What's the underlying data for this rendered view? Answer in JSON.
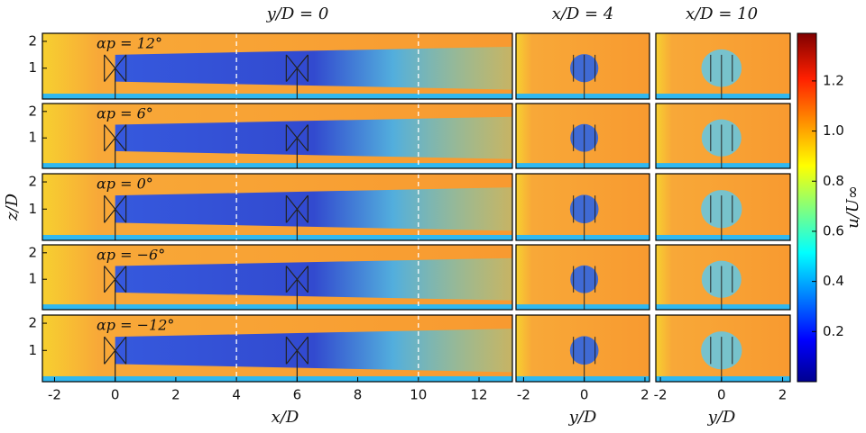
{
  "chart_data": {
    "type": "heatmap",
    "titles": [
      "y/D = 0",
      "x/D = 4",
      "x/D = 10"
    ],
    "xlabels": [
      "x/D",
      "y/D",
      "y/D"
    ],
    "ylabel": "z/D",
    "colorbar_label": "u/U∞",
    "rows": [
      "αp = 12°",
      "αp = 6°",
      "αp = 0°",
      "αp = −6°",
      "αp = −12°"
    ],
    "xlim": [
      -2.4,
      13.1
    ],
    "xticks": [
      -2,
      0,
      2,
      4,
      6,
      8,
      10,
      12
    ],
    "ylim": [
      -0.15,
      2.3
    ],
    "yticks": [
      1,
      2
    ],
    "x2lim": [
      -2.25,
      2.15
    ],
    "x2ticks": [
      -2,
      0,
      2
    ],
    "x3lim": [
      -2.15,
      2.25
    ],
    "x3ticks": [
      -2,
      0,
      2
    ],
    "clim": [
      0,
      1.39
    ],
    "cticks": [
      0.2,
      0.4,
      0.6,
      0.8,
      {
        "value": 1,
        "label": "1.0"
      },
      1.2
    ],
    "reference_lines": [
      4,
      10
    ],
    "turbines_x": [
      0,
      6
    ]
  }
}
